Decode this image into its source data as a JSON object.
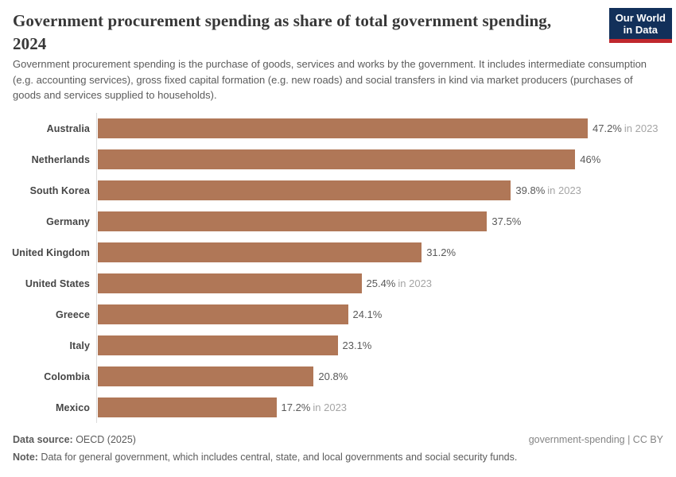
{
  "logo": {
    "line1": "Our World",
    "line2": "in Data"
  },
  "colors": {
    "bar": "#b07757",
    "logo_bg": "#12305a",
    "logo_accent": "#c0282e",
    "axis_line": "#dcdcdc"
  },
  "header": {
    "title": "Government procurement spending as share of total government spending, 2024",
    "subtitle": "Government procurement spending is the purchase of goods, services and works by the government. It includes intermediate consumption (e.g. accounting services), gross fixed capital formation (e.g. new roads) and social transfers in kind via market producers (purchases of goods and services supplied to households)."
  },
  "chart_data": {
    "type": "bar",
    "orientation": "horizontal",
    "title": "Government procurement spending as share of total government spending, 2024",
    "unit": "%",
    "xlabel": "",
    "ylabel": "",
    "xlim": [
      0,
      55
    ],
    "grid": false,
    "legend": "none",
    "bar_color": "#b07757",
    "categories": [
      "Australia",
      "Netherlands",
      "South Korea",
      "Germany",
      "United Kingdom",
      "United States",
      "Greece",
      "Italy",
      "Colombia",
      "Mexico"
    ],
    "values": [
      47.2,
      46,
      39.8,
      37.5,
      31.2,
      25.4,
      24.1,
      23.1,
      20.8,
      17.2
    ],
    "bars": [
      {
        "label": "Australia",
        "value": 47.2,
        "display": "47.2%",
        "note": "in 2023"
      },
      {
        "label": "Netherlands",
        "value": 46,
        "display": "46%",
        "note": ""
      },
      {
        "label": "South Korea",
        "value": 39.8,
        "display": "39.8%",
        "note": "in 2023"
      },
      {
        "label": "Germany",
        "value": 37.5,
        "display": "37.5%",
        "note": ""
      },
      {
        "label": "United Kingdom",
        "value": 31.2,
        "display": "31.2%",
        "note": ""
      },
      {
        "label": "United States",
        "value": 25.4,
        "display": "25.4%",
        "note": "in 2023"
      },
      {
        "label": "Greece",
        "value": 24.1,
        "display": "24.1%",
        "note": ""
      },
      {
        "label": "Italy",
        "value": 23.1,
        "display": "23.1%",
        "note": ""
      },
      {
        "label": "Colombia",
        "value": 20.8,
        "display": "20.8%",
        "note": ""
      },
      {
        "label": "Mexico",
        "value": 17.2,
        "display": "17.2%",
        "note": "in 2023"
      }
    ]
  },
  "footer": {
    "source_label": "Data source:",
    "source_value": " OECD (2025)",
    "license": "government-spending | CC BY",
    "note_label": "Note:",
    "note_value": " Data for general government, which includes central, state, and local governments and social security funds."
  }
}
